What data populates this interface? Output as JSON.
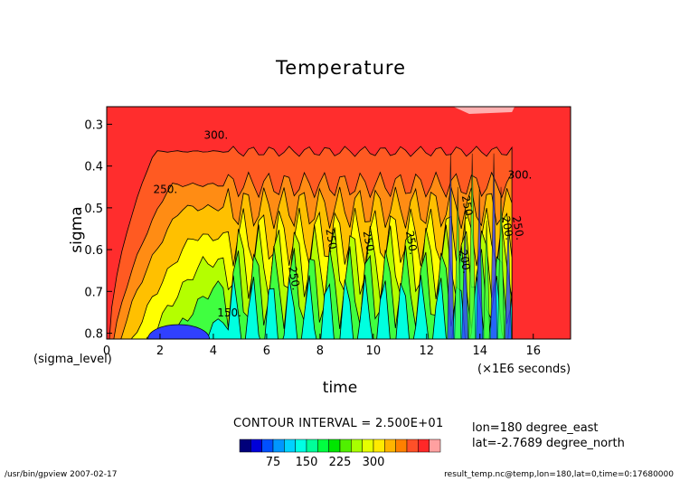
{
  "chart_data": {
    "type": "contour",
    "title": "Temperature",
    "xlabel": "time",
    "ylabel": "sigma",
    "x_range": [
      0,
      17.4
    ],
    "y_range": [
      0.814,
      0.258
    ],
    "x_ticks": [
      "0",
      "2",
      "4",
      "6",
      "8",
      "10",
      "12",
      "14",
      "16"
    ],
    "y_ticks": [
      "0.3",
      "0.4",
      "0.5",
      "0.6",
      "0.7",
      "0.8"
    ],
    "x_axis_note": "(sigma_level)",
    "x_unit": "(×1E6 seconds)",
    "contour_interval_text": "CONTOUR INTERVAL = 2.500E+01",
    "contour_labels": [
      {
        "text": "300.",
        "x": 4.1,
        "y": 0.335
      },
      {
        "text": "250.",
        "x": 2.2,
        "y": 0.465
      },
      {
        "text": "250.",
        "x": 8.3,
        "y": 0.58
      },
      {
        "text": "250.",
        "x": 9.7,
        "y": 0.585
      },
      {
        "text": "250.",
        "x": 11.3,
        "y": 0.585
      },
      {
        "text": "250.",
        "x": 6.9,
        "y": 0.67
      },
      {
        "text": "150.",
        "x": 4.6,
        "y": 0.76
      },
      {
        "text": "300.",
        "x": 15.5,
        "y": 0.43
      },
      {
        "text": "250.",
        "x": 15.3,
        "y": 0.55
      },
      {
        "text": "200.",
        "x": 14.9,
        "y": 0.55
      },
      {
        "text": "250.",
        "x": 13.4,
        "y": 0.5
      },
      {
        "text": "200.",
        "x": 13.3,
        "y": 0.63
      }
    ],
    "colorbar": {
      "tick_labels": [
        "75",
        "150",
        "225",
        "300"
      ],
      "colors": [
        "#00007a",
        "#0000d8",
        "#0050ff",
        "#0096ff",
        "#00d2ff",
        "#00ffe4",
        "#00ff9a",
        "#00ff40",
        "#00e600",
        "#50f000",
        "#a8ff00",
        "#e6ff00",
        "#ffea00",
        "#ffb400",
        "#ff8000",
        "#ff5028",
        "#ff2828",
        "#ffa0a0"
      ]
    },
    "field_colors": {
      "very_high": "#ff2d2d",
      "high": "#ff5a22",
      "upper_mid": "#ff8c14",
      "mid": "#ffc000",
      "lower_mid": "#ffff00",
      "low": "#b4ff00",
      "lower": "#40ff40",
      "lowest": "#00ffe0",
      "deep": "#3040ff",
      "top_band": "#ffb0b0"
    },
    "grid": false,
    "legend": "bottom-center"
  },
  "annotations": {
    "lon": "lon=180 degree_east",
    "lat": "lat=-2.7689 degree_north",
    "footer_left": "/usr/bin/gpview  2007-02-17",
    "footer_right": "result_temp.nc@temp,lon=180,lat=0,time=0:17680000"
  }
}
